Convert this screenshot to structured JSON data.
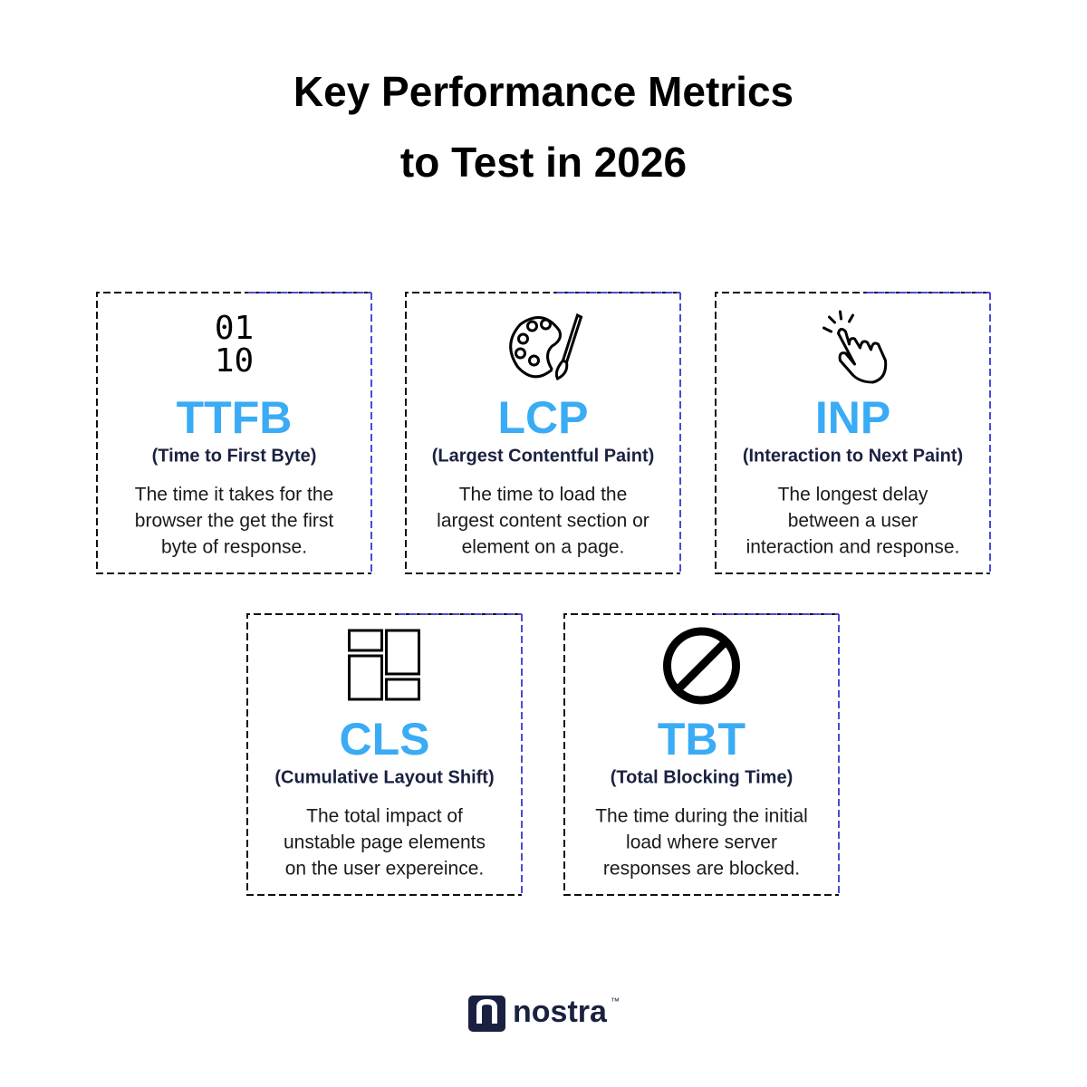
{
  "title": [
    "Key Performance Metrics",
    "to Test in 2026"
  ],
  "cards": [
    {
      "icon_text": [
        "01",
        "10"
      ],
      "abbr": "TTFB",
      "name": "(Time to First Byte)",
      "description": [
        "The time it takes for the",
        "browser the get the first",
        "byte of response."
      ]
    },
    {
      "abbr": "LCP",
      "name": "(Largest Contentful Paint)",
      "description": [
        "The time to load the",
        "largest content section or",
        "element on a page."
      ]
    },
    {
      "abbr": "INP",
      "name": "(Interaction to Next Paint)",
      "description": [
        "The longest delay",
        "between a user",
        "interaction and response."
      ]
    },
    {
      "abbr": "CLS",
      "name": "(Cumulative Layout Shift)",
      "description": [
        "The total impact of",
        "unstable page elements",
        "on the user expereince."
      ]
    },
    {
      "abbr": "TBT",
      "name": "(Total Blocking Time)",
      "description": [
        "The time during the initial",
        "load where server",
        "responses are blocked."
      ]
    }
  ],
  "logo": {
    "text": "nostra",
    "mark": "™"
  }
}
